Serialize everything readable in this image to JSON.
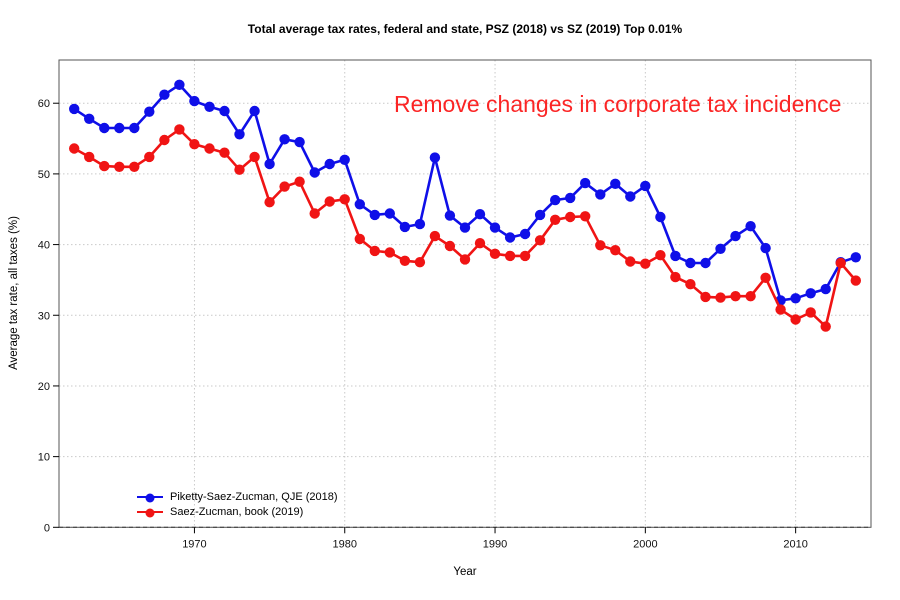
{
  "figure": {
    "background": "#ffffff"
  },
  "annotation": {
    "text": "Remove changes in corporate tax incidence",
    "color": "#fb2525"
  },
  "axes": {
    "spine_color": "#555555",
    "grid_color": "#c9c9c9",
    "tick_color": "#000000",
    "zero_line_color": "#444444"
  },
  "chart_data": {
    "type": "line",
    "title": "Total average tax rates, federal and state, PSZ (2018) vs SZ (2019) Top 0.01%",
    "xlabel": "Year",
    "ylabel": "Average tax rate, all taxes (%)",
    "xlim": [
      1961,
      2015
    ],
    "ylim": [
      0,
      66
    ],
    "x_ticks": [
      1970,
      1980,
      1990,
      2000,
      2010
    ],
    "y_ticks": [
      0,
      10,
      20,
      30,
      40,
      50,
      60
    ],
    "grid": "dotted",
    "legend_position": "bottom-left",
    "x": [
      1962,
      1963,
      1964,
      1965,
      1966,
      1967,
      1968,
      1969,
      1970,
      1971,
      1972,
      1973,
      1974,
      1975,
      1976,
      1977,
      1978,
      1979,
      1980,
      1981,
      1982,
      1983,
      1984,
      1985,
      1986,
      1987,
      1988,
      1989,
      1990,
      1991,
      1992,
      1993,
      1994,
      1995,
      1996,
      1997,
      1998,
      1999,
      2000,
      2001,
      2002,
      2003,
      2004,
      2005,
      2006,
      2007,
      2008,
      2009,
      2010,
      2011,
      2012,
      2013,
      2014
    ],
    "series": [
      {
        "name": "Piketty-Saez-Zucman, QJE (2018)",
        "color": "#0f0fe8",
        "marker": "circle",
        "values": [
          59.2,
          57.8,
          56.5,
          56.5,
          56.5,
          58.8,
          61.2,
          62.6,
          60.3,
          59.5,
          58.9,
          55.6,
          58.9,
          51.4,
          54.9,
          54.5,
          50.2,
          51.4,
          52.0,
          45.7,
          44.2,
          44.4,
          42.5,
          42.9,
          52.3,
          44.1,
          42.4,
          44.3,
          42.4,
          41.0,
          41.5,
          44.2,
          46.3,
          46.6,
          48.7,
          47.1,
          48.6,
          46.8,
          48.3,
          43.9,
          38.4,
          37.4,
          37.4,
          39.4,
          41.2,
          42.6,
          39.5,
          32.1,
          32.4,
          33.1,
          33.7,
          37.5,
          38.2
        ]
      },
      {
        "name": "Saez-Zucman, book (2019)",
        "color": "#f01414",
        "marker": "circle",
        "values": [
          53.6,
          52.4,
          51.1,
          51.0,
          51.0,
          52.4,
          54.8,
          56.3,
          54.2,
          53.6,
          53.0,
          50.6,
          52.4,
          46.0,
          48.2,
          48.9,
          44.4,
          46.1,
          46.4,
          40.8,
          39.1,
          38.9,
          37.7,
          37.5,
          41.2,
          39.8,
          37.9,
          40.2,
          38.7,
          38.4,
          38.4,
          40.6,
          43.5,
          43.9,
          44.0,
          39.9,
          39.2,
          37.6,
          37.3,
          38.5,
          35.4,
          34.4,
          32.6,
          32.5,
          32.7,
          32.7,
          35.3,
          30.8,
          29.4,
          30.4,
          28.4,
          37.4,
          34.9
        ]
      }
    ]
  }
}
